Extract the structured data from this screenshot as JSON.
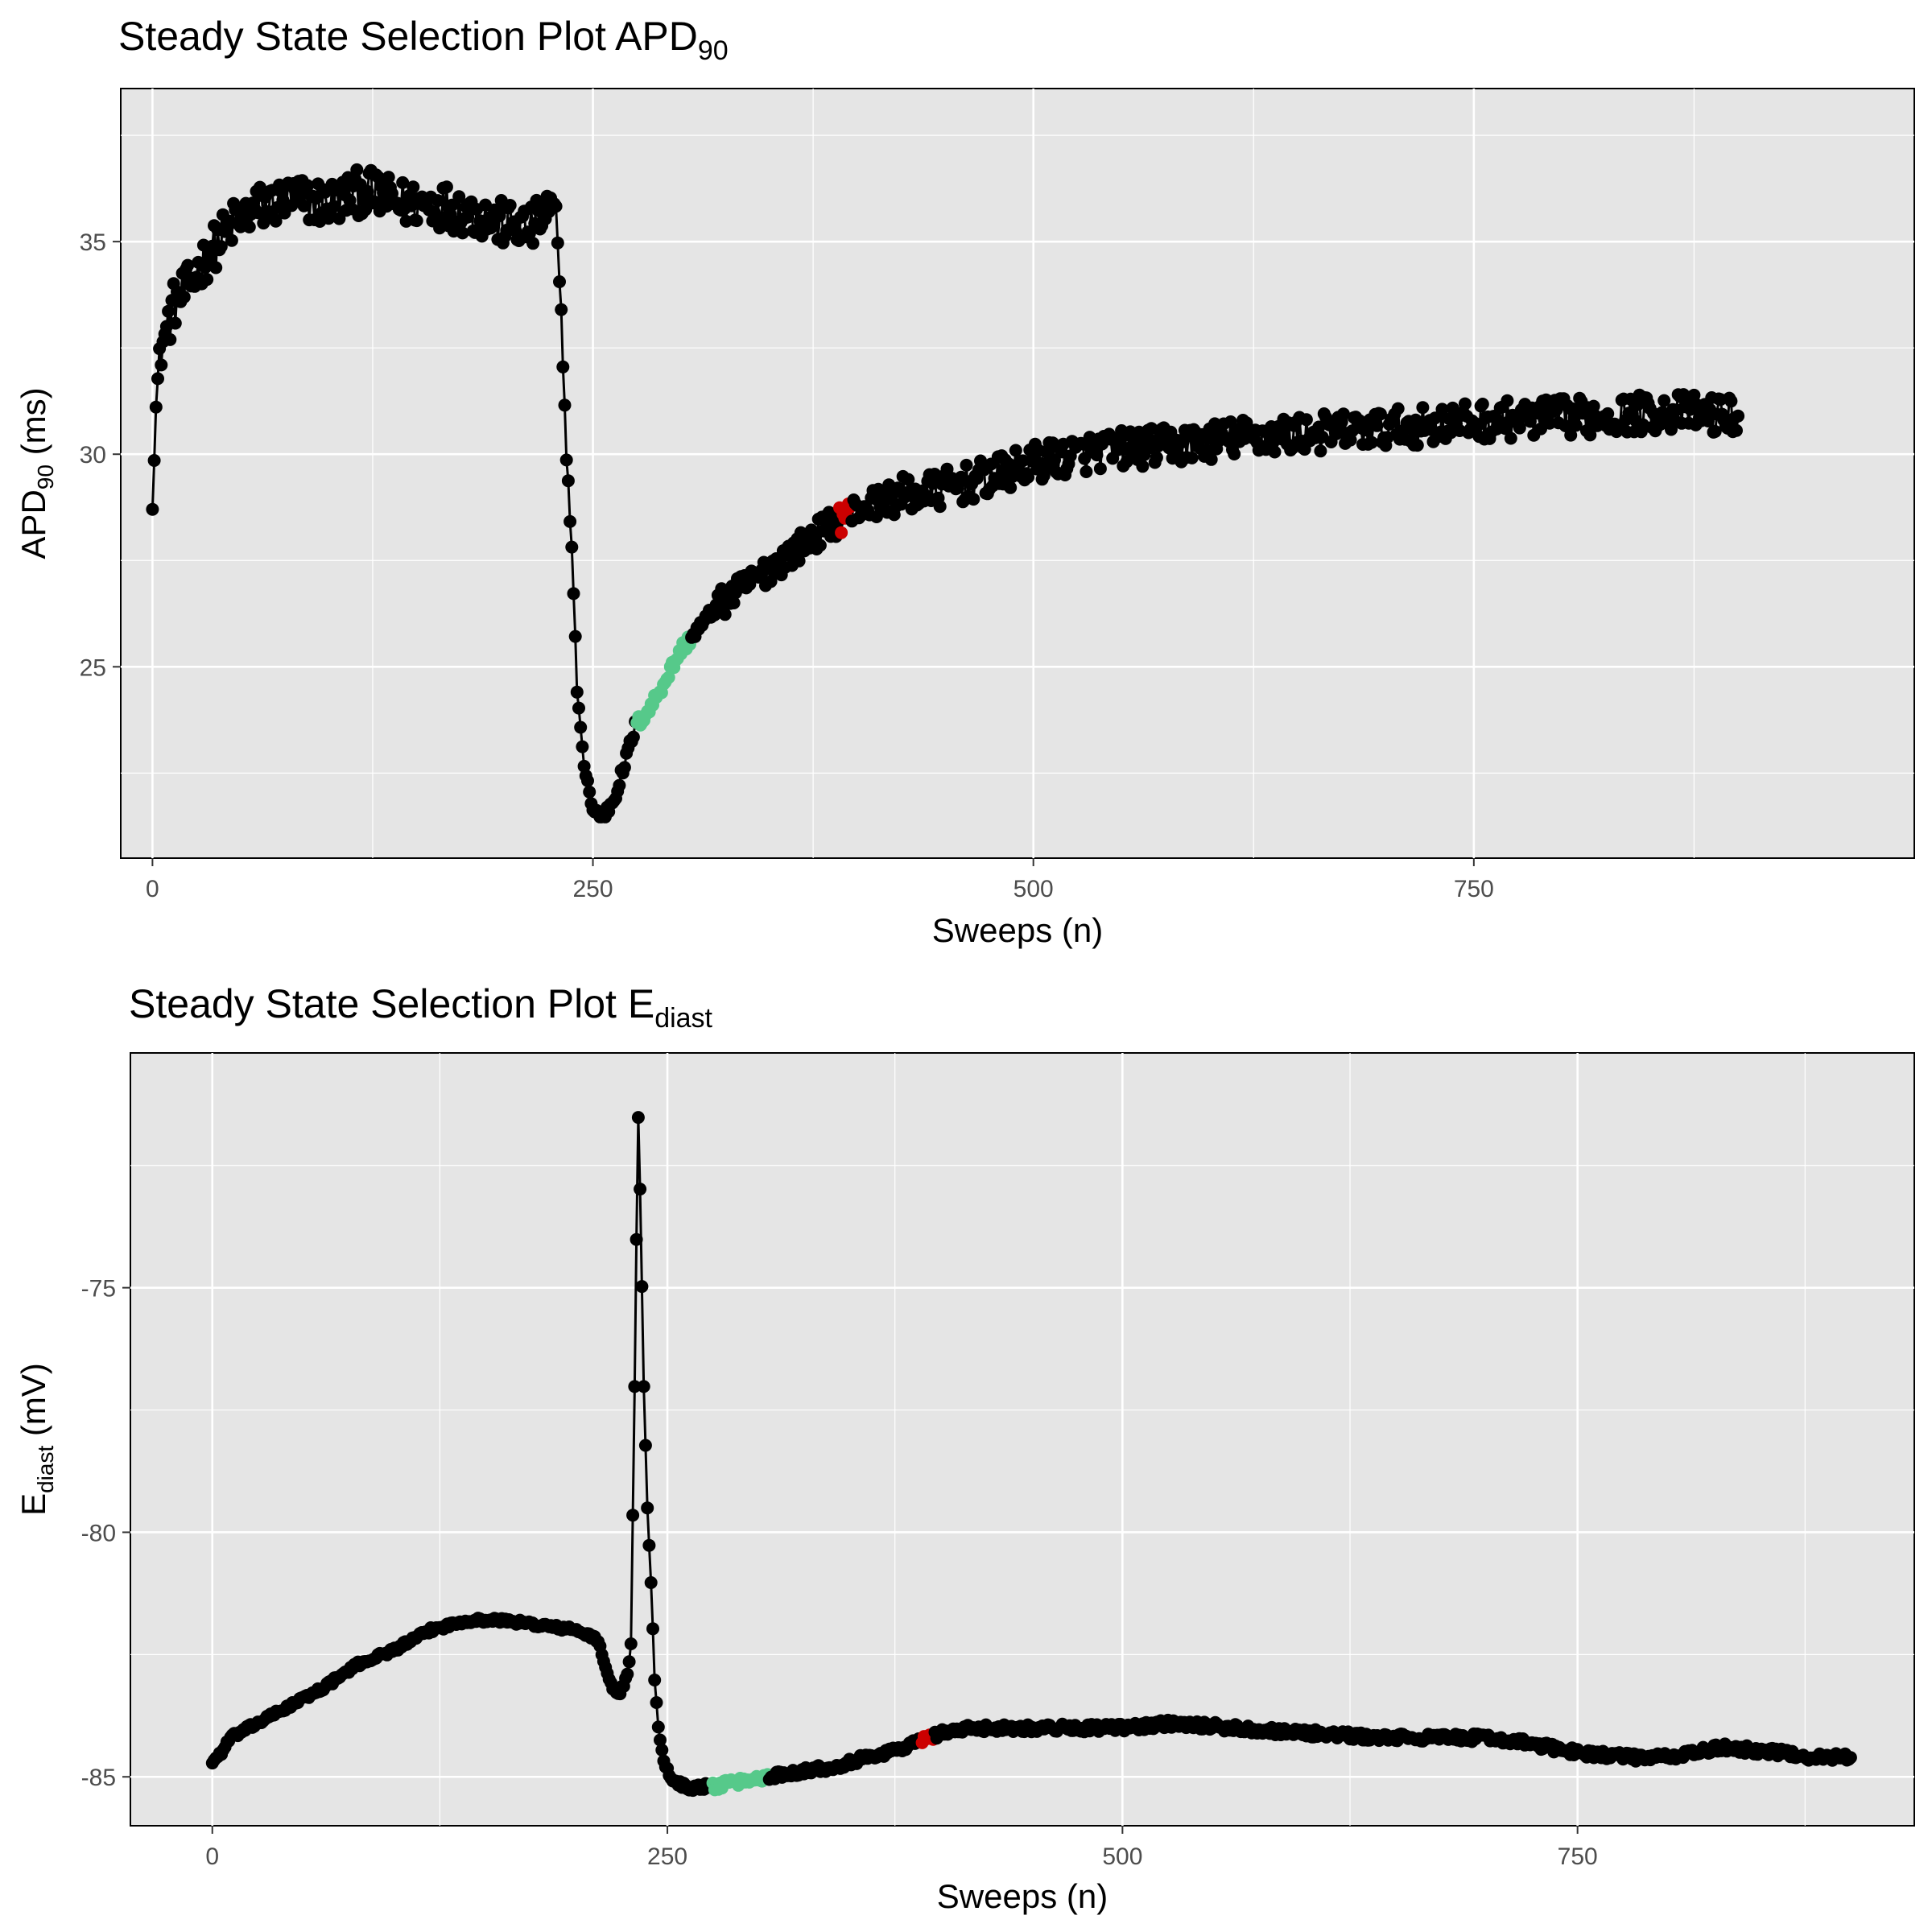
{
  "chart_data": [
    {
      "type": "line",
      "title": "Steady State Selection Plot APD",
      "title_subscript": "90",
      "xlabel": "Sweeps (n)",
      "ylabel": "APD",
      "ylabel_subscript": "90",
      "ylabel_unit": " (ms)",
      "xlim": [
        -18,
        1000
      ],
      "ylim": [
        20.5,
        38.6
      ],
      "x_ticks": [
        0,
        250,
        500,
        750
      ],
      "x_tick_labels": [
        "0",
        "250",
        "500",
        "750"
      ],
      "y_ticks": [
        25,
        30,
        35
      ],
      "y_tick_labels": [
        "25",
        "30",
        "35"
      ],
      "grid": true,
      "markers": true,
      "colors": {
        "line": "#000000",
        "point": "#000000",
        "highlight": "#56c98a",
        "selected": "#cc0000",
        "panel": "#e5e5e5",
        "grid": "#ffffff"
      },
      "anchors": [
        [
          0,
          28.8
        ],
        [
          2,
          31.1
        ],
        [
          4,
          32.4
        ],
        [
          8,
          32.9
        ],
        [
          12,
          33.5
        ],
        [
          20,
          33.9
        ],
        [
          30,
          34.6
        ],
        [
          45,
          35.4
        ],
        [
          60,
          35.8
        ],
        [
          80,
          36.0
        ],
        [
          100,
          35.9
        ],
        [
          120,
          36.2
        ],
        [
          140,
          35.9
        ],
        [
          160,
          35.9
        ],
        [
          180,
          35.7
        ],
        [
          200,
          35.4
        ],
        [
          215,
          35.3
        ],
        [
          224,
          35.7
        ],
        [
          229,
          35.6
        ],
        [
          232,
          33.3
        ],
        [
          235,
          30.0
        ],
        [
          238,
          27.8
        ],
        [
          241,
          24.5
        ],
        [
          244,
          23.0
        ],
        [
          247,
          22.3
        ],
        [
          250,
          21.6
        ],
        [
          256,
          21.5
        ],
        [
          262,
          21.9
        ],
        [
          268,
          22.7
        ],
        [
          274,
          23.6
        ],
        [
          282,
          24.0
        ],
        [
          290,
          24.6
        ],
        [
          300,
          25.4
        ],
        [
          310,
          25.9
        ],
        [
          320,
          26.4
        ],
        [
          340,
          27.0
        ],
        [
          360,
          27.6
        ],
        [
          380,
          28.2
        ],
        [
          395,
          28.6
        ],
        [
          400,
          28.7
        ],
        [
          420,
          29.0
        ],
        [
          440,
          29.1
        ],
        [
          460,
          29.3
        ],
        [
          480,
          29.5
        ],
        [
          500,
          29.8
        ],
        [
          540,
          30.1
        ],
        [
          580,
          30.2
        ],
        [
          620,
          30.4
        ],
        [
          660,
          30.5
        ],
        [
          700,
          30.6
        ],
        [
          760,
          30.8
        ],
        [
          820,
          30.9
        ],
        [
          860,
          31.0
        ],
        [
          900,
          30.9
        ]
      ],
      "highlight_range": [
        275,
        305
      ],
      "selected_range": [
        390,
        396
      ],
      "n_sweeps": 901
    },
    {
      "type": "line",
      "title": "Steady State Selection Plot E",
      "title_subscript": "diast",
      "xlabel": "Sweeps (n)",
      "ylabel": "E",
      "ylabel_subscript": "diast",
      "ylabel_unit": " (mV)",
      "xlim": [
        -45,
        935
      ],
      "ylim": [
        -86.0,
        -70.2
      ],
      "x_ticks": [
        0,
        250,
        500,
        750
      ],
      "x_tick_labels": [
        "0",
        "250",
        "500",
        "750"
      ],
      "y_ticks": [
        -85,
        -80,
        -75
      ],
      "y_tick_labels": [
        "-85",
        "-80",
        "-75"
      ],
      "grid": true,
      "markers": true,
      "colors": {
        "line": "#000000",
        "point": "#000000",
        "highlight": "#56c98a",
        "selected": "#cc0000",
        "panel": "#e5e5e5",
        "grid": "#ffffff"
      },
      "anchors": [
        [
          0,
          -84.7
        ],
        [
          5,
          -84.5
        ],
        [
          10,
          -84.2
        ],
        [
          20,
          -84.0
        ],
        [
          40,
          -83.6
        ],
        [
          60,
          -83.2
        ],
        [
          80,
          -82.7
        ],
        [
          100,
          -82.4
        ],
        [
          120,
          -82.0
        ],
        [
          140,
          -81.8
        ],
        [
          160,
          -81.8
        ],
        [
          180,
          -81.9
        ],
        [
          200,
          -82.0
        ],
        [
          212,
          -82.2
        ],
        [
          216,
          -82.8
        ],
        [
          220,
          -83.2
        ],
        [
          224,
          -83.3
        ],
        [
          228,
          -82.9
        ],
        [
          230,
          -82.3
        ],
        [
          232,
          -77.0
        ],
        [
          233,
          -74.0
        ],
        [
          234,
          -71.5
        ],
        [
          235,
          -73.0
        ],
        [
          237,
          -77.0
        ],
        [
          239,
          -79.5
        ],
        [
          241,
          -81.0
        ],
        [
          243,
          -83.0
        ],
        [
          245,
          -84.0
        ],
        [
          248,
          -84.7
        ],
        [
          252,
          -85.0
        ],
        [
          258,
          -85.2
        ],
        [
          265,
          -85.2
        ],
        [
          275,
          -85.2
        ],
        [
          290,
          -85.1
        ],
        [
          305,
          -85.0
        ],
        [
          320,
          -84.9
        ],
        [
          340,
          -84.8
        ],
        [
          360,
          -84.6
        ],
        [
          380,
          -84.4
        ],
        [
          400,
          -84.1
        ],
        [
          420,
          -84.0
        ],
        [
          440,
          -84.0
        ],
        [
          460,
          -84.0
        ],
        [
          480,
          -84.0
        ],
        [
          500,
          -84.0
        ],
        [
          530,
          -83.9
        ],
        [
          560,
          -84.0
        ],
        [
          600,
          -84.1
        ],
        [
          640,
          -84.2
        ],
        [
          680,
          -84.2
        ],
        [
          700,
          -84.2
        ],
        [
          720,
          -84.3
        ],
        [
          750,
          -84.5
        ],
        [
          780,
          -84.6
        ],
        [
          800,
          -84.6
        ],
        [
          830,
          -84.4
        ],
        [
          860,
          -84.5
        ],
        [
          880,
          -84.6
        ],
        [
          900,
          -84.6
        ]
      ],
      "highlight_range": [
        275,
        305
      ],
      "selected_range": [
        390,
        396
      ],
      "n_sweeps": 901
    }
  ]
}
